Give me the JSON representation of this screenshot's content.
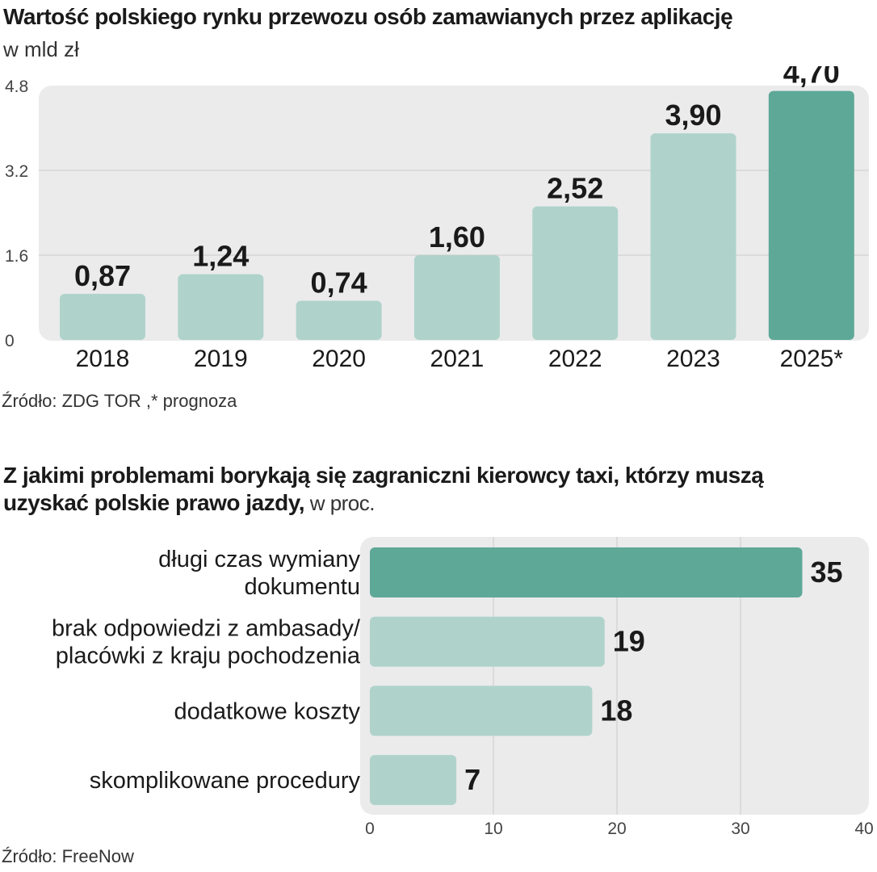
{
  "chart_data": [
    {
      "type": "bar",
      "title": "Wartość polskiego rynku przewozu osób zamawianych przez aplikację",
      "subtitle": "w mld zł",
      "categories": [
        "2018",
        "2019",
        "2020",
        "2021",
        "2022",
        "2023",
        "2025*"
      ],
      "values": [
        0.87,
        1.24,
        0.74,
        1.6,
        2.52,
        3.9,
        4.7
      ],
      "value_labels": [
        "0,87",
        "1,24",
        "0,74",
        "1,60",
        "2,52",
        "3,90",
        "4,70"
      ],
      "highlight_index": 6,
      "ylim": [
        0,
        4.8
      ],
      "yticks": [
        "0",
        "1.6",
        "3.2",
        "4.8"
      ],
      "ytick_values": [
        0,
        1.6,
        3.2,
        4.8
      ],
      "source": "Źródło: ZDG TOR ,* prognoza",
      "colors": {
        "bar": "#afd3cb",
        "highlight": "#5ea898",
        "panel": "#ebebeb",
        "grid": "#d6d6d6"
      }
    },
    {
      "type": "bar",
      "orientation": "horizontal",
      "title_line1": "Z jakimi problemami borykają się zagraniczni kierowcy taxi, którzy muszą",
      "title_line2": "uzyskać polskie prawo jazdy,",
      "title_unit": " w proc.",
      "categories": [
        [
          "długi czas wymiany",
          "dokumentu"
        ],
        [
          "brak odpowiedzi z ambasady/",
          "placówki z kraju pochodzenia"
        ],
        [
          "dodatkowe koszty"
        ],
        [
          "skomplikowane procedury"
        ]
      ],
      "values": [
        35,
        19,
        18,
        7
      ],
      "value_labels": [
        "35",
        "19",
        "18",
        "7"
      ],
      "highlight_index": 0,
      "xlim": [
        0,
        40
      ],
      "xticks": [
        "0",
        "10",
        "20",
        "30",
        "40"
      ],
      "xtick_values": [
        0,
        10,
        20,
        30,
        40
      ],
      "source": "Źródło: FreeNow",
      "colors": {
        "bar": "#afd3cb",
        "highlight": "#5ea898",
        "panel": "#ebebeb",
        "grid": "#d6d6d6"
      }
    }
  ]
}
